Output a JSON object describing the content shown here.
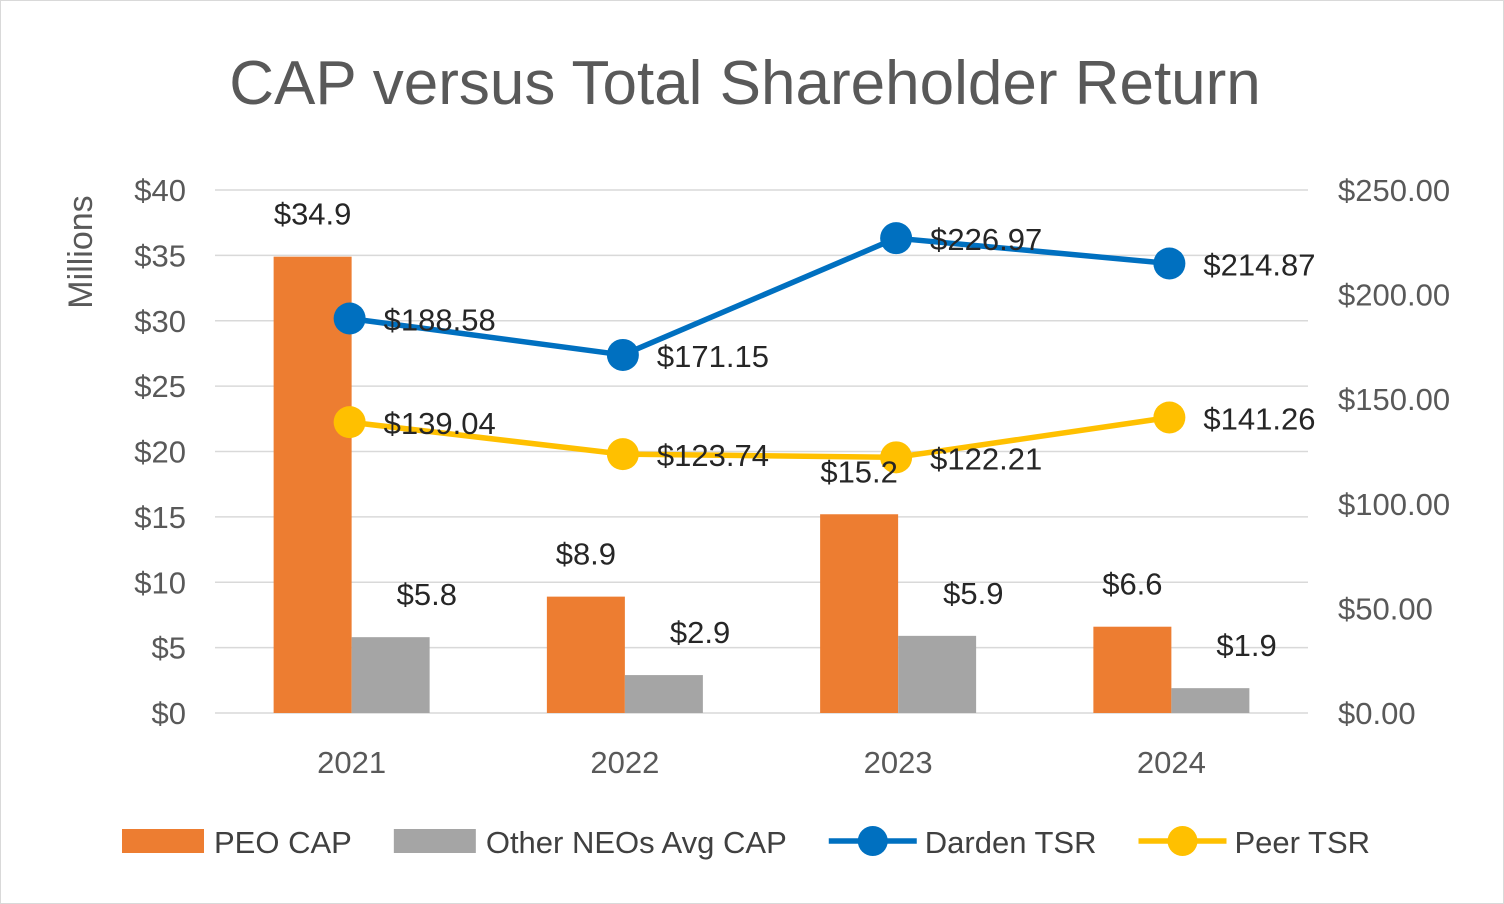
{
  "chart_data": {
    "type": "bar",
    "title": "CAP versus Total Shareholder Return",
    "ylabel": "Millions",
    "categories": [
      "2021",
      "2022",
      "2023",
      "2024"
    ],
    "ylim": [
      0,
      40
    ],
    "y_ticks": [
      "$0",
      "$5",
      "$10",
      "$15",
      "$20",
      "$25",
      "$30",
      "$35",
      "$40"
    ],
    "y2lim": [
      0,
      250
    ],
    "y2_ticks": [
      "$0.00",
      "$50.00",
      "$100.00",
      "$150.00",
      "$200.00",
      "$250.00"
    ],
    "grid": true,
    "legend_position": "bottom",
    "series": [
      {
        "name": "PEO CAP",
        "type": "bar",
        "axis": "left",
        "color": "#ED7D31",
        "values": [
          34.9,
          8.9,
          15.2,
          6.6
        ],
        "labels": [
          "$34.9",
          "$8.9",
          "$15.2",
          "$6.6"
        ]
      },
      {
        "name": "Other NEOs Avg CAP",
        "type": "bar",
        "axis": "left",
        "color": "#A5A5A5",
        "values": [
          5.8,
          2.9,
          5.9,
          1.9
        ],
        "labels": [
          "$5.8",
          "$2.9",
          "$5.9",
          "$1.9"
        ]
      },
      {
        "name": "Darden TSR",
        "type": "line",
        "axis": "right",
        "color": "#0070C0",
        "values": [
          188.58,
          171.15,
          226.97,
          214.87
        ],
        "labels": [
          "$188.58",
          "$171.15",
          "$226.97",
          "$214.87"
        ]
      },
      {
        "name": "Peer TSR",
        "type": "line",
        "axis": "right",
        "color": "#FFC000",
        "values": [
          139.04,
          123.74,
          122.21,
          141.26
        ],
        "labels": [
          "$139.04",
          "$123.74",
          "$122.21",
          "$141.26"
        ]
      }
    ]
  }
}
